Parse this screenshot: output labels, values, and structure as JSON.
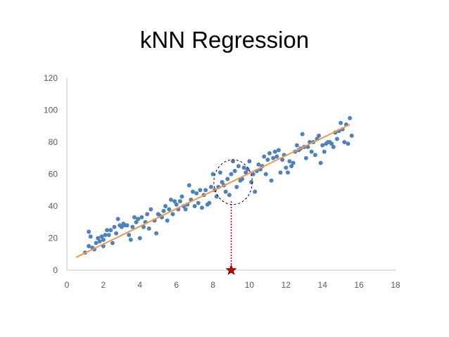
{
  "chart_data": {
    "type": "scatter",
    "title": "kNN Regression",
    "xlabel": "",
    "ylabel": "",
    "xlim": [
      0,
      18
    ],
    "ylim": [
      0,
      120
    ],
    "x_ticks": [
      0,
      2,
      4,
      6,
      8,
      10,
      12,
      14,
      16,
      18
    ],
    "y_ticks": [
      0,
      20,
      40,
      60,
      80,
      100,
      120
    ],
    "grid": false,
    "legend": "none",
    "colors": {
      "points": "#4f81bd",
      "trend": "#f79646",
      "marker": "#c00000",
      "query_line": "#c00000",
      "neighborhood": "#000000"
    },
    "series": [
      {
        "type": "scatter",
        "points": [
          [
            1.0,
            11
          ],
          [
            1.2,
            15
          ],
          [
            1.2,
            24
          ],
          [
            1.3,
            21
          ],
          [
            1.4,
            14
          ],
          [
            1.5,
            13
          ],
          [
            1.6,
            17
          ],
          [
            1.7,
            20
          ],
          [
            1.8,
            18
          ],
          [
            1.9,
            21
          ],
          [
            2.0,
            19
          ],
          [
            2.0,
            15
          ],
          [
            2.1,
            22
          ],
          [
            2.2,
            25
          ],
          [
            2.3,
            22
          ],
          [
            2.4,
            25
          ],
          [
            2.5,
            17
          ],
          [
            2.6,
            27
          ],
          [
            2.7,
            23
          ],
          [
            2.8,
            32
          ],
          [
            2.9,
            28
          ],
          [
            3.0,
            27
          ],
          [
            3.1,
            29
          ],
          [
            3.2,
            28
          ],
          [
            3.3,
            28
          ],
          [
            3.4,
            22
          ],
          [
            3.5,
            19
          ],
          [
            3.6,
            27
          ],
          [
            3.7,
            33
          ],
          [
            3.8,
            30
          ],
          [
            3.9,
            32
          ],
          [
            4.0,
            20
          ],
          [
            4.1,
            33
          ],
          [
            4.2,
            27
          ],
          [
            4.3,
            30
          ],
          [
            4.4,
            35
          ],
          [
            4.5,
            26
          ],
          [
            4.6,
            38
          ],
          [
            4.8,
            31
          ],
          [
            4.9,
            23
          ],
          [
            5.0,
            35
          ],
          [
            5.1,
            34
          ],
          [
            5.2,
            33
          ],
          [
            5.3,
            37
          ],
          [
            5.4,
            40
          ],
          [
            5.5,
            31
          ],
          [
            5.6,
            38
          ],
          [
            5.7,
            44
          ],
          [
            5.8,
            35
          ],
          [
            5.9,
            43
          ],
          [
            6.0,
            41
          ],
          [
            6.1,
            38
          ],
          [
            6.2,
            43
          ],
          [
            6.3,
            46
          ],
          [
            6.4,
            40
          ],
          [
            6.5,
            38
          ],
          [
            6.6,
            41
          ],
          [
            6.7,
            53
          ],
          [
            6.8,
            44
          ],
          [
            6.9,
            49
          ],
          [
            7.0,
            40
          ],
          [
            7.1,
            48
          ],
          [
            7.2,
            42
          ],
          [
            7.3,
            50
          ],
          [
            7.4,
            39
          ],
          [
            7.5,
            47
          ],
          [
            7.6,
            50
          ],
          [
            7.7,
            41
          ],
          [
            7.8,
            42
          ],
          [
            7.9,
            52
          ],
          [
            8.0,
            60
          ],
          [
            8.1,
            50
          ],
          [
            8.2,
            46
          ],
          [
            8.3,
            52
          ],
          [
            8.4,
            61
          ],
          [
            8.5,
            55
          ],
          [
            8.6,
            53
          ],
          [
            8.7,
            49
          ],
          [
            8.8,
            57
          ],
          [
            8.9,
            47
          ],
          [
            9.0,
            60
          ],
          [
            9.1,
            68
          ],
          [
            9.2,
            62
          ],
          [
            9.3,
            52
          ],
          [
            9.4,
            65
          ],
          [
            9.5,
            56
          ],
          [
            9.6,
            57
          ],
          [
            9.7,
            64
          ],
          [
            9.8,
            61
          ],
          [
            9.9,
            63
          ],
          [
            10.0,
            68
          ],
          [
            10.1,
            55
          ],
          [
            10.2,
            60
          ],
          [
            10.3,
            49
          ],
          [
            10.4,
            62
          ],
          [
            10.5,
            66
          ],
          [
            10.6,
            63
          ],
          [
            10.7,
            65
          ],
          [
            10.8,
            71
          ],
          [
            10.9,
            60
          ],
          [
            11.0,
            69
          ],
          [
            11.1,
            73
          ],
          [
            11.2,
            56
          ],
          [
            11.3,
            70
          ],
          [
            11.4,
            74
          ],
          [
            11.5,
            71
          ],
          [
            11.6,
            75
          ],
          [
            11.7,
            61
          ],
          [
            11.8,
            69
          ],
          [
            11.9,
            72
          ],
          [
            12.0,
            64
          ],
          [
            12.1,
            61
          ],
          [
            12.2,
            68
          ],
          [
            12.3,
            65
          ],
          [
            12.4,
            67
          ],
          [
            12.5,
            74
          ],
          [
            12.6,
            78
          ],
          [
            12.7,
            75
          ],
          [
            12.8,
            76
          ],
          [
            12.9,
            85
          ],
          [
            13.0,
            77
          ],
          [
            13.1,
            70
          ],
          [
            13.2,
            77
          ],
          [
            13.3,
            80
          ],
          [
            13.4,
            74
          ],
          [
            13.5,
            80
          ],
          [
            13.6,
            72
          ],
          [
            13.7,
            82
          ],
          [
            13.8,
            84
          ],
          [
            13.9,
            67
          ],
          [
            14.0,
            78
          ],
          [
            14.1,
            74
          ],
          [
            14.2,
            79
          ],
          [
            14.3,
            80
          ],
          [
            14.4,
            80
          ],
          [
            14.5,
            79
          ],
          [
            14.6,
            77
          ],
          [
            14.7,
            86
          ],
          [
            14.8,
            82
          ],
          [
            14.9,
            87
          ],
          [
            15.0,
            92
          ],
          [
            15.1,
            88
          ],
          [
            15.2,
            80
          ],
          [
            15.3,
            91
          ],
          [
            15.4,
            79
          ],
          [
            15.5,
            95
          ],
          [
            15.6,
            84
          ]
        ]
      },
      {
        "type": "trendline",
        "points": [
          [
            0.5,
            8
          ],
          [
            15.5,
            91
          ]
        ]
      }
    ],
    "annotations": [
      {
        "type": "query-star",
        "x": 9.0,
        "y": 0
      },
      {
        "type": "query-dotted-line",
        "x": 9.0,
        "y_from": 0,
        "y_to": 43
      },
      {
        "type": "neighborhood-circle",
        "center": [
          9.1,
          55
        ],
        "rx": 1.05,
        "ry": 14
      }
    ]
  }
}
